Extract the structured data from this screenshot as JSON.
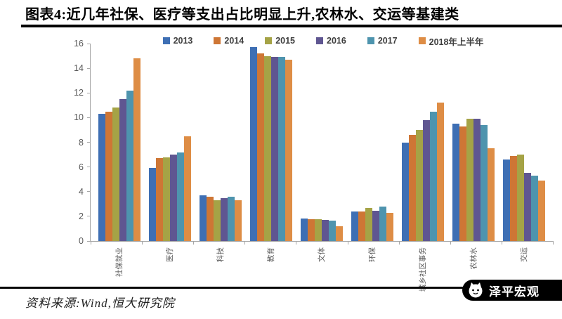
{
  "header": {
    "title": "图表4:近几年社保、医疗等支出占比明显上升,农林水、交运等基建类"
  },
  "footer": {
    "source": "资料来源:Wind,恒大研究院",
    "logo_text": "泽平宏观"
  },
  "colors": {
    "axis": "#a6a6a6",
    "rule": "#0a0a0a",
    "tick_text": "#595959"
  },
  "chart_data": {
    "type": "bar",
    "title": "图表4:近几年社保、医疗等支出占比明显上升,农林水、交运等基建类",
    "xlabel": "",
    "ylabel": "",
    "ylim": [
      0,
      16
    ],
    "yticks": [
      0,
      2,
      4,
      6,
      8,
      10,
      12,
      14,
      16
    ],
    "grid": false,
    "legend_position": "top",
    "categories": [
      "社保就业",
      "医疗",
      "科技",
      "教育",
      "文体",
      "环保",
      "城乡社区事务",
      "农林水",
      "交运"
    ],
    "series": [
      {
        "name": "2013",
        "color": "#3E6FB4",
        "values": [
          10.3,
          5.9,
          3.7,
          15.7,
          1.8,
          2.4,
          8.0,
          9.5,
          6.6
        ]
      },
      {
        "name": "2014",
        "color": "#CE7635",
        "values": [
          10.5,
          6.7,
          3.6,
          15.2,
          1.75,
          2.4,
          8.6,
          9.3,
          6.9
        ]
      },
      {
        "name": "2015",
        "color": "#A5A346",
        "values": [
          10.8,
          6.8,
          3.3,
          15.0,
          1.75,
          2.7,
          9.0,
          9.9,
          7.0
        ]
      },
      {
        "name": "2016",
        "color": "#5F5691",
        "values": [
          11.5,
          7.0,
          3.5,
          14.9,
          1.7,
          2.45,
          9.8,
          9.9,
          5.5
        ]
      },
      {
        "name": "2017",
        "color": "#4E94AE",
        "values": [
          12.2,
          7.2,
          3.6,
          14.9,
          1.65,
          2.8,
          10.5,
          9.4,
          5.3
        ]
      },
      {
        "name": "2018年上半年",
        "color": "#DE8D45",
        "values": [
          14.8,
          8.5,
          3.3,
          14.7,
          1.2,
          2.3,
          11.2,
          7.5,
          4.9
        ]
      }
    ]
  }
}
